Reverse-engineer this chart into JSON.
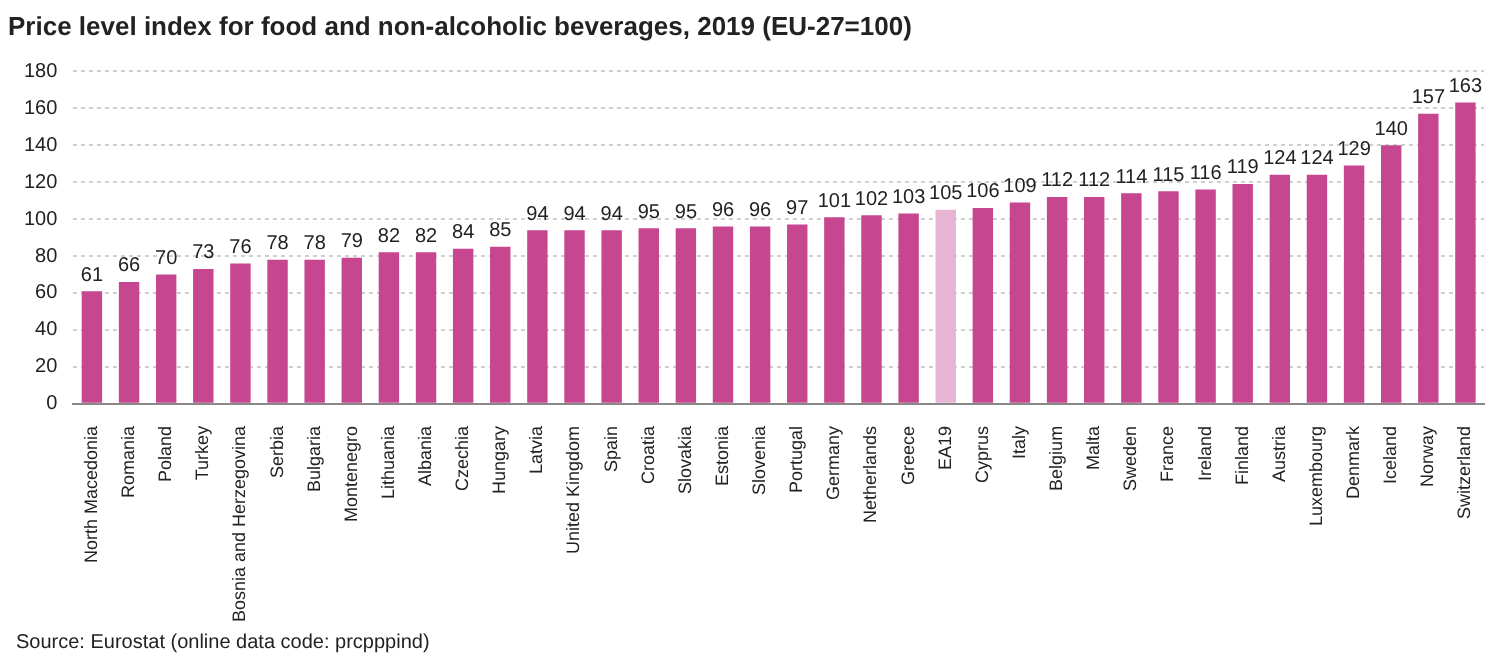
{
  "chart_data": {
    "type": "bar",
    "title": "Price level index for food and non-alcoholic beverages, 2019 (EU-27=100)",
    "categories": [
      "North Macedonia",
      "Romania",
      "Poland",
      "Turkey",
      "Bosnia and Herzegovina",
      "Serbia",
      "Bulgaria",
      "Montenegro",
      "Lithuania",
      "Albania",
      "Czechia",
      "Hungary",
      "Latvia",
      "United Kingdom",
      "Spain",
      "Croatia",
      "Slovakia",
      "Estonia",
      "Slovenia",
      "Portugal",
      "Germany",
      "Netherlands",
      "Greece",
      "EA19",
      "Cyprus",
      "Italy",
      "Belgium",
      "Malta",
      "Sweden",
      "France",
      "Ireland",
      "Finland",
      "Austria",
      "Luxembourg",
      "Denmark",
      "Iceland",
      "Norway",
      "Switzerland"
    ],
    "values": [
      61,
      66,
      70,
      73,
      76,
      78,
      78,
      79,
      82,
      82,
      84,
      85,
      94,
      94,
      94,
      95,
      95,
      96,
      96,
      97,
      101,
      102,
      103,
      105,
      106,
      109,
      112,
      112,
      114,
      115,
      116,
      119,
      124,
      124,
      129,
      140,
      157,
      163
    ],
    "colors": [
      "#c6468f",
      "#c6468f",
      "#c6468f",
      "#c6468f",
      "#c6468f",
      "#c6468f",
      "#c6468f",
      "#c6468f",
      "#c6468f",
      "#c6468f",
      "#c6468f",
      "#c6468f",
      "#c6468f",
      "#c6468f",
      "#c6468f",
      "#c6468f",
      "#c6468f",
      "#c6468f",
      "#c6468f",
      "#c6468f",
      "#c6468f",
      "#c6468f",
      "#c6468f",
      "#e8b4d4",
      "#c6468f",
      "#c6468f",
      "#c6468f",
      "#c6468f",
      "#c6468f",
      "#c6468f",
      "#c6468f",
      "#c6468f",
      "#c6468f",
      "#c6468f",
      "#c6468f",
      "#c6468f",
      "#c6468f",
      "#c6468f"
    ],
    "ylim": [
      0,
      180
    ],
    "yticks": [
      0,
      20,
      40,
      60,
      80,
      100,
      120,
      140,
      160,
      180
    ],
    "grid": "y",
    "legend": false,
    "data_labels": true,
    "annotations": [
      "Source: Eurostat (online data code: prcpppind)"
    ]
  }
}
